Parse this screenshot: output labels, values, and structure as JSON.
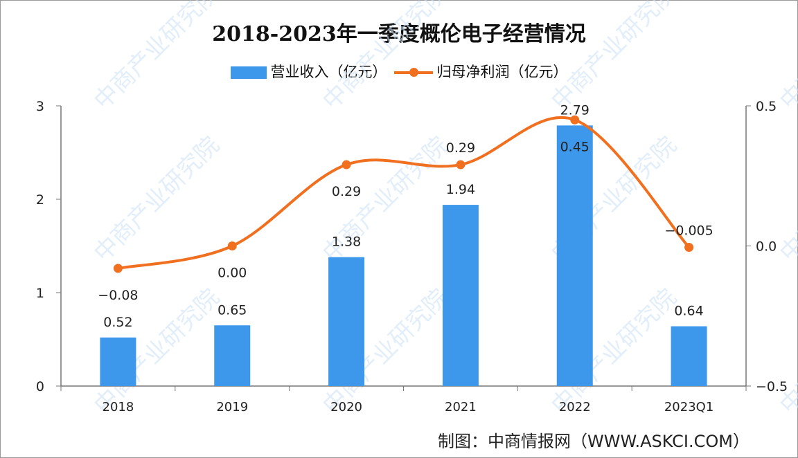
{
  "chart_data": {
    "type": "bar+line",
    "title": "2018-2023年一季度概伦电子经营情况",
    "categories": [
      "2018",
      "2019",
      "2020",
      "2021",
      "2022",
      "2023Q1"
    ],
    "series": [
      {
        "name": "营业收入（亿元）",
        "type": "bar",
        "axis": "left",
        "values": [
          0.52,
          0.65,
          1.38,
          1.94,
          2.79,
          0.64
        ],
        "labels": [
          "0.52",
          "0.65",
          "1.38",
          "1.94",
          "2.79",
          "0.64"
        ],
        "color": "#3d97ea"
      },
      {
        "name": "归母净利润（亿元）",
        "type": "line",
        "axis": "right",
        "smooth": true,
        "values": [
          -0.08,
          0.0,
          0.29,
          0.29,
          0.45,
          -0.005
        ],
        "labels": [
          "-0.08",
          "0.00",
          "0.29",
          "0.29",
          "0.45",
          "-0.005"
        ],
        "color": "#f07020"
      }
    ],
    "y_left": {
      "range": [
        0,
        3
      ],
      "ticks": [
        "0",
        "1",
        "2",
        "3"
      ]
    },
    "y_right": {
      "range": [
        -0.5,
        0.5
      ],
      "ticks": [
        "-0.5",
        "0.0",
        "0.5"
      ]
    },
    "grid": false,
    "legend_placement": "top"
  },
  "footer": "制图：中商情报网（WWW.ASKCI.COM）",
  "watermark": "中商产业研究院"
}
